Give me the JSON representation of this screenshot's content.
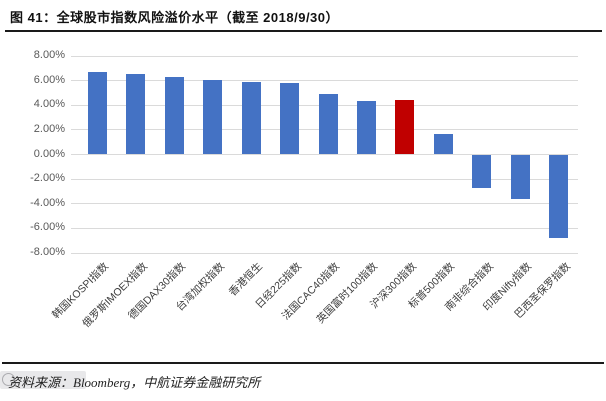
{
  "figure": {
    "title": "图 41：全球股市指数风险溢价水平（截至 2018/9/30）",
    "source": "资料来源：Bloomberg，中航证券金融研究所"
  },
  "chart_data": {
    "type": "bar",
    "title": "全球股市指数风险溢价水平（截至 2018/9/30）",
    "categories": [
      "韩国KOSPI指数",
      "俄罗斯IMOEX指数",
      "德国DAX30指数",
      "台湾加权指数",
      "香港恒生",
      "日经225指数",
      "法国CAC40指数",
      "英国富时100指数",
      "沪深300指数",
      "标普500指数",
      "南非综合指数",
      "印度Nifty指数",
      "巴西圣保罗指数"
    ],
    "values": [
      6.7,
      6.55,
      6.3,
      6.08,
      5.85,
      5.8,
      4.9,
      4.35,
      4.4,
      1.7,
      -2.7,
      -3.6,
      -6.75
    ],
    "highlight_index": 8,
    "y_ticks": [
      "8.00%",
      "6.00%",
      "4.00%",
      "2.00%",
      "0.00%",
      "-2.00%",
      "-4.00%",
      "-6.00%",
      "-8.00%"
    ],
    "ylim": [
      -8,
      8
    ],
    "grid": true,
    "legend_position": "none",
    "colors": {
      "bar": "#4472c4",
      "highlight": "#c00000",
      "gridline": "#dadada",
      "axis_label": "#595959"
    }
  }
}
